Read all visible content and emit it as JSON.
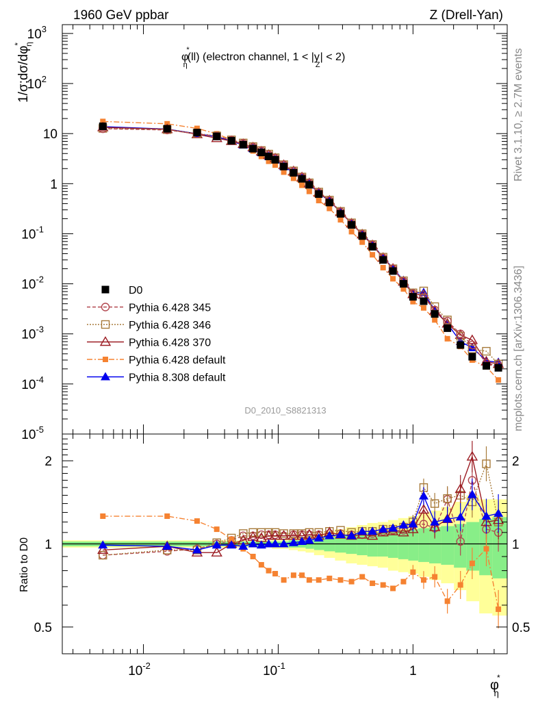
{
  "header": {
    "left": "1960 GeV ppbar",
    "right": "Z (Drell-Yan)",
    "side_top": "Rivet 3.1.10, ≥ 2.7M events",
    "side_bottom": "mcplots.cern.ch [arXiv:1306.3436]"
  },
  "chart_data": [
    {
      "type": "line",
      "panel": "main",
      "title": "φ*η(ll) (electron channel, 1 < |yZ| < 2)",
      "title_parts": {
        "phi": "φ",
        "star": "*",
        "eta": "η",
        "rest1": "(ll) (electron channel, 1 < |y",
        "z": "Z",
        "rest2": "| < 2)"
      },
      "analysis_label": "D0_2010_S8821313",
      "xlabel": {
        "phi": "φ",
        "star": "*",
        "eta": "η"
      },
      "ylabel": {
        "a": "1/σ;dσ/dφ",
        "star": "*",
        "eta": "η"
      },
      "x_scale": "log",
      "y_scale": "log",
      "xlim": [
        0.0025,
        5
      ],
      "ylim": [
        1e-05,
        1500
      ],
      "y_ticks": [
        {
          "v": 1e-05,
          "b": "10",
          "e": "-5"
        },
        {
          "v": 0.0001,
          "b": "10",
          "e": "-4"
        },
        {
          "v": 0.001,
          "b": "10",
          "e": "-3"
        },
        {
          "v": 0.01,
          "b": "10",
          "e": "-2"
        },
        {
          "v": 0.1,
          "b": "10",
          "e": "-1"
        },
        {
          "v": 1,
          "b": "1",
          "e": ""
        },
        {
          "v": 10,
          "b": "10",
          "e": ""
        },
        {
          "v": 100,
          "b": "10",
          "e": "2"
        },
        {
          "v": 1000,
          "b": "10",
          "e": "3"
        }
      ],
      "x": [
        0.005,
        0.015,
        0.025,
        0.035,
        0.045,
        0.055,
        0.065,
        0.075,
        0.085,
        0.095,
        0.11,
        0.13,
        0.15,
        0.17,
        0.2,
        0.24,
        0.29,
        0.35,
        0.42,
        0.5,
        0.6,
        0.71,
        0.85,
        1.0,
        1.2,
        1.45,
        1.8,
        2.25,
        2.75,
        3.5,
        4.3
      ],
      "series": [
        {
          "name": "D0",
          "color": "#000000",
          "marker": "square-filled",
          "dash": "none",
          "values": [
            14.0,
            12.5,
            10.5,
            8.8,
            7.2,
            6.0,
            5.0,
            4.2,
            3.5,
            3.0,
            2.2,
            1.65,
            1.25,
            0.95,
            0.62,
            0.42,
            0.25,
            0.15,
            0.09,
            0.055,
            0.03,
            0.018,
            0.01,
            0.0055,
            0.0045,
            0.0025,
            0.0013,
            0.0006,
            0.00035,
            0.00023,
            0.00021
          ]
        },
        {
          "name": "Pythia 6.428 345",
          "color": "#b2474f",
          "marker": "circle-open",
          "dash": "5,3",
          "values": [
            12.5,
            11.8,
            9.9,
            8.9,
            7.4,
            6.4,
            5.4,
            4.55,
            3.8,
            3.25,
            2.38,
            1.78,
            1.35,
            1.03,
            0.67,
            0.46,
            0.275,
            0.162,
            0.098,
            0.06,
            0.033,
            0.02,
            0.0112,
            0.0064,
            0.0054,
            0.003,
            0.0018,
            0.001,
            0.0006,
            0.00026,
            0.00023
          ]
        },
        {
          "name": "Pythia 6.428 346",
          "color": "#a77a3a",
          "marker": "square-open",
          "dash": "2,2",
          "values": [
            12.7,
            12.0,
            10.0,
            9.0,
            7.5,
            6.5,
            5.5,
            4.6,
            3.9,
            3.3,
            2.4,
            1.8,
            1.36,
            1.04,
            0.68,
            0.47,
            0.28,
            0.165,
            0.1,
            0.061,
            0.034,
            0.02,
            0.0115,
            0.0066,
            0.0072,
            0.0035,
            0.0019,
            0.0009,
            0.0005,
            0.00045,
            0.00025
          ]
        },
        {
          "name": "Pythia 6.428 370",
          "color": "#9b1b22",
          "marker": "triangle-open",
          "dash": "none",
          "values": [
            13.3,
            12.2,
            9.7,
            8.1,
            7.1,
            6.2,
            5.3,
            4.4,
            3.75,
            3.2,
            2.35,
            1.77,
            1.34,
            1.02,
            0.66,
            0.46,
            0.27,
            0.16,
            0.097,
            0.059,
            0.033,
            0.02,
            0.011,
            0.0062,
            0.006,
            0.0029,
            0.0016,
            0.00095,
            0.00075,
            0.00028,
            0.00025
          ]
        },
        {
          "name": "Pythia 6.428 default",
          "color": "#f58231",
          "marker": "square-filled-small",
          "dash": "8,3,2,3",
          "values": [
            17.5,
            15.7,
            12.7,
            9.9,
            7.5,
            5.8,
            4.5,
            3.5,
            2.8,
            2.35,
            1.7,
            1.28,
            0.93,
            0.7,
            0.46,
            0.32,
            0.19,
            0.11,
            0.068,
            0.038,
            0.021,
            0.0126,
            0.0079,
            0.0044,
            0.0033,
            0.0019,
            0.0008,
            0.00056,
            0.0003,
            0.00022,
            0.00012
          ]
        },
        {
          "name": "Pythia 8.308 default",
          "color": "#0000ee",
          "marker": "triangle-filled",
          "dash": "none",
          "values": [
            13.8,
            12.3,
            9.9,
            8.7,
            7.1,
            5.9,
            5.0,
            4.2,
            3.5,
            3.0,
            2.2,
            1.66,
            1.28,
            0.98,
            0.65,
            0.45,
            0.27,
            0.16,
            0.1,
            0.061,
            0.034,
            0.0205,
            0.0117,
            0.0065,
            0.0067,
            0.003,
            0.0016,
            0.0007,
            0.00053,
            0.00029,
            0.00027
          ]
        }
      ]
    },
    {
      "type": "line",
      "panel": "ratio",
      "ylabel": "Ratio to D0",
      "x_scale": "log",
      "y_scale": "log",
      "ylim": [
        0.4,
        2.5
      ],
      "y_ticks": [
        0.5,
        1,
        2
      ],
      "x_ticks": [
        {
          "v": 0.01,
          "b": "10",
          "e": "-2"
        },
        {
          "v": 0.1,
          "b": "10",
          "e": "-1"
        },
        {
          "v": 1,
          "b": "1",
          "e": ""
        }
      ],
      "band_green": {
        "lo": [
          0.98,
          0.98,
          0.98,
          0.98,
          0.98,
          0.98,
          0.98,
          0.98,
          0.98,
          0.98,
          0.98,
          0.97,
          0.97,
          0.96,
          0.95,
          0.94,
          0.93,
          0.92,
          0.91,
          0.9,
          0.9,
          0.89,
          0.88,
          0.87,
          0.86,
          0.85,
          0.84,
          0.82,
          0.8,
          0.77,
          0.75
        ],
        "hi": [
          1.02,
          1.02,
          1.02,
          1.02,
          1.02,
          1.02,
          1.02,
          1.02,
          1.02,
          1.02,
          1.02,
          1.03,
          1.03,
          1.04,
          1.05,
          1.06,
          1.07,
          1.08,
          1.09,
          1.1,
          1.1,
          1.11,
          1.12,
          1.13,
          1.14,
          1.15,
          1.16,
          1.18,
          1.2,
          1.23,
          1.25
        ]
      },
      "band_yellow": {
        "lo": [
          0.97,
          0.97,
          0.97,
          0.97,
          0.97,
          0.97,
          0.97,
          0.97,
          0.97,
          0.96,
          0.96,
          0.95,
          0.94,
          0.93,
          0.91,
          0.89,
          0.87,
          0.85,
          0.84,
          0.83,
          0.82,
          0.8,
          0.79,
          0.78,
          0.76,
          0.74,
          0.72,
          0.68,
          0.62,
          0.56,
          0.55
        ],
        "hi": [
          1.03,
          1.03,
          1.03,
          1.03,
          1.03,
          1.03,
          1.03,
          1.03,
          1.03,
          1.04,
          1.04,
          1.05,
          1.06,
          1.07,
          1.09,
          1.11,
          1.13,
          1.15,
          1.17,
          1.19,
          1.2,
          1.22,
          1.24,
          1.26,
          1.29,
          1.32,
          1.36,
          1.42,
          1.5,
          1.45,
          1.45
        ]
      },
      "series": [
        {
          "name": "Pythia 6.428 345",
          "values": [
            0.91,
            0.94,
            0.96,
            1.0,
            1.03,
            1.07,
            1.07,
            1.08,
            1.08,
            1.08,
            1.07,
            1.08,
            1.08,
            1.08,
            1.08,
            1.09,
            1.09,
            1.08,
            1.08,
            1.09,
            1.11,
            1.12,
            1.12,
            1.17,
            1.18,
            1.14,
            1.45,
            1.02,
            1.7,
            1.13,
            1.1
          ]
        },
        {
          "name": "Pythia 6.428 346",
          "values": [
            0.91,
            0.95,
            0.95,
            1.01,
            1.05,
            1.09,
            1.1,
            1.1,
            1.1,
            1.1,
            1.09,
            1.09,
            1.09,
            1.1,
            1.1,
            1.11,
            1.12,
            1.1,
            1.11,
            1.11,
            1.13,
            1.13,
            1.15,
            1.2,
            1.6,
            1.4,
            1.46,
            1.5,
            1.42,
            1.95,
            1.2
          ]
        },
        {
          "name": "Pythia 6.428 370",
          "values": [
            0.95,
            0.98,
            0.93,
            0.93,
            1.0,
            1.03,
            1.06,
            1.05,
            1.07,
            1.07,
            1.07,
            1.07,
            1.07,
            1.08,
            1.07,
            1.1,
            1.08,
            1.07,
            1.08,
            1.07,
            1.1,
            1.11,
            1.1,
            1.13,
            1.33,
            1.15,
            1.23,
            1.58,
            2.07,
            1.2,
            1.22
          ]
        },
        {
          "name": "Pythia 6.428 default",
          "values": [
            1.26,
            1.26,
            1.21,
            1.13,
            1.04,
            0.96,
            0.9,
            0.84,
            0.8,
            0.78,
            0.74,
            0.77,
            0.77,
            0.74,
            0.74,
            0.75,
            0.74,
            0.73,
            0.76,
            0.72,
            0.71,
            0.69,
            0.73,
            0.79,
            0.74,
            0.76,
            0.62,
            0.71,
            0.85,
            0.96,
            0.58
          ]
        },
        {
          "name": "Pythia 8.308 default",
          "values": [
            0.99,
            0.98,
            0.95,
            0.99,
            0.99,
            0.98,
            1.0,
            0.99,
            1.0,
            1.0,
            1.0,
            1.01,
            1.02,
            1.03,
            1.05,
            1.07,
            1.08,
            1.07,
            1.11,
            1.11,
            1.13,
            1.14,
            1.17,
            1.18,
            1.49,
            1.2,
            1.23,
            1.25,
            1.51,
            1.26,
            1.29
          ]
        }
      ]
    }
  ]
}
